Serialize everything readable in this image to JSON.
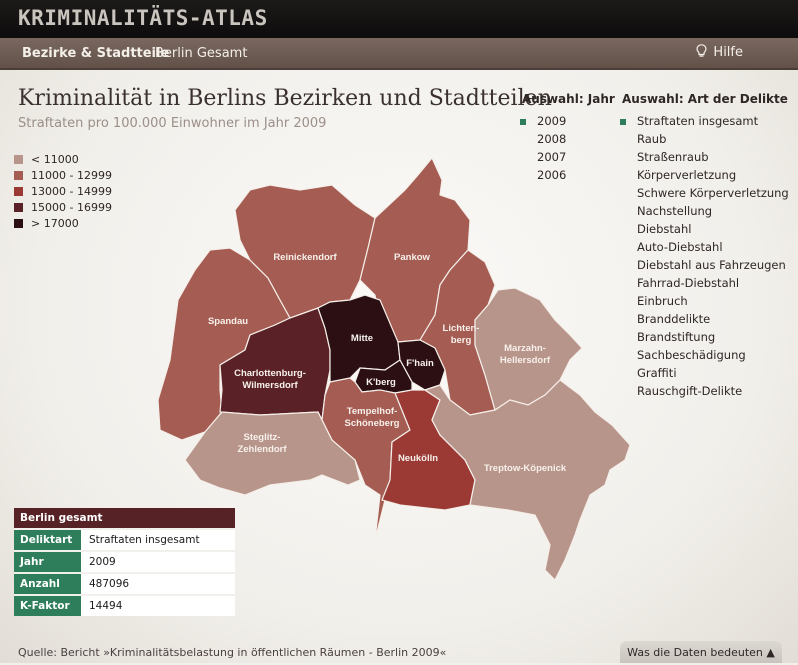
{
  "app": {
    "title": "KRIMINALITÄTS-ATLAS"
  },
  "nav": {
    "items": [
      {
        "label": "Bezirke & Stadtteile"
      },
      {
        "label": "Berlin Gesamt"
      }
    ],
    "help_label": "Hilfe",
    "help_icon": "lightbulb-icon"
  },
  "page": {
    "title": "Kriminalität in Berlins Bezirken und Stadtteilen",
    "subtitle": "Straftaten pro 100.000 Einwohner im Jahr 2009"
  },
  "legend": [
    {
      "label": "< 11000",
      "color": "#b8958a"
    },
    {
      "label": "11000 - 12999",
      "color": "#a55c52"
    },
    {
      "label": "13000 - 14999",
      "color": "#9b3a35"
    },
    {
      "label": "15000 - 16999",
      "color": "#5a2226"
    },
    {
      "label": "> 17000",
      "color": "#2b0f12"
    }
  ],
  "years": {
    "heading": "Auswahl: Jahr",
    "selected": "2009",
    "options": [
      "2009",
      "2008",
      "2007",
      "2006"
    ]
  },
  "offenses": {
    "heading": "Auswahl: Art der Delikte",
    "selected": "Straftaten insgesamt",
    "options": [
      "Straftaten insgesamt",
      "Raub",
      "Straßenraub",
      "Körperverletzung",
      "Schwere Körperverletzung",
      "Nachstellung",
      "Diebstahl",
      "Auto-Diebstahl",
      "Diebstahl aus Fahrzeugen",
      "Fahrrad-Diebstahl",
      "Einbruch",
      "Branddelikte",
      "Brandstiftung",
      "Sachbeschädigung",
      "Graffiti",
      "Rauschgift-Delikte"
    ]
  },
  "districts": [
    {
      "key": "reinickendorf",
      "label": "Reinickendorf",
      "color": "#a55c52"
    },
    {
      "key": "pankow",
      "label": "Pankow",
      "color": "#a55c52"
    },
    {
      "key": "spandau",
      "label": "Spandau",
      "color": "#a55c52"
    },
    {
      "key": "mitte",
      "label": "Mitte",
      "color": "#2b0f12"
    },
    {
      "key": "lichtenberg",
      "label": "Lichten-",
      "label2": "berg",
      "color": "#a55c52"
    },
    {
      "key": "marzahn",
      "label": "Marzahn-",
      "label2": "Hellersdorf",
      "color": "#b8958a"
    },
    {
      "key": "charlottenburg",
      "label": "Charlottenburg-",
      "label2": "Wilmersdorf",
      "color": "#5a2226"
    },
    {
      "key": "fhain",
      "label": "F'hain",
      "color": "#2b0f12"
    },
    {
      "key": "kberg",
      "label": "K'berg",
      "color": "#2b0f12"
    },
    {
      "key": "tempelhof",
      "label": "Tempelhof-",
      "label2": "Schöneberg",
      "color": "#a55c52"
    },
    {
      "key": "steglitz",
      "label": "Steglitz-",
      "label2": "Zehlendorf",
      "color": "#b8958a"
    },
    {
      "key": "neukoelln",
      "label": "Neukölln",
      "color": "#9b3a35"
    },
    {
      "key": "treptow",
      "label": "Treptow-Köpenick",
      "color": "#b8958a"
    }
  ],
  "summary": {
    "heading": "Berlin gesamt",
    "rows": [
      {
        "key": "Deliktart",
        "value": "Straftaten insgesamt"
      },
      {
        "key": "Jahr",
        "value": "2009"
      },
      {
        "key": "Anzahl",
        "value": "487096"
      },
      {
        "key": "K-Faktor",
        "value": "14494"
      }
    ]
  },
  "footer": {
    "source": "Quelle: Bericht »Kriminalitätsbelastung in öffentlichen Räumen - Berlin 2009«",
    "data_button": "Was die Daten bedeuten ▲"
  }
}
